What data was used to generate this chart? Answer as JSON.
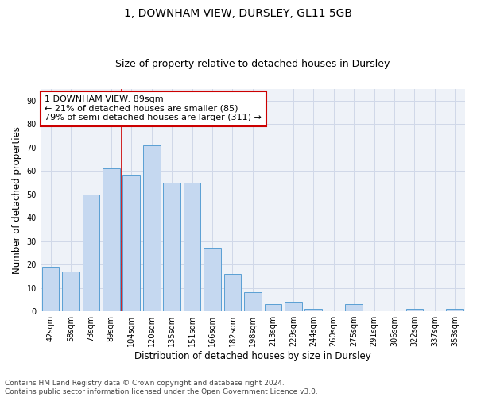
{
  "title": "1, DOWNHAM VIEW, DURSLEY, GL11 5GB",
  "subtitle": "Size of property relative to detached houses in Dursley",
  "xlabel": "Distribution of detached houses by size in Dursley",
  "ylabel": "Number of detached properties",
  "categories": [
    "42sqm",
    "58sqm",
    "73sqm",
    "89sqm",
    "104sqm",
    "120sqm",
    "135sqm",
    "151sqm",
    "166sqm",
    "182sqm",
    "198sqm",
    "213sqm",
    "229sqm",
    "244sqm",
    "260sqm",
    "275sqm",
    "291sqm",
    "306sqm",
    "322sqm",
    "337sqm",
    "353sqm"
  ],
  "values": [
    19,
    17,
    50,
    61,
    58,
    71,
    55,
    55,
    27,
    16,
    8,
    3,
    4,
    1,
    0,
    3,
    0,
    0,
    1,
    0,
    1
  ],
  "bar_color": "#c5d8f0",
  "bar_edge_color": "#5a9fd4",
  "grid_color": "#d0d8e8",
  "bg_color": "#eef2f8",
  "vline_x_index": 3,
  "annotation_text_line1": "1 DOWNHAM VIEW: 89sqm",
  "annotation_text_line2": "← 21% of detached houses are smaller (85)",
  "annotation_text_line3": "79% of semi-detached houses are larger (311) →",
  "annotation_box_facecolor": "#ffffff",
  "annotation_box_edgecolor": "#cc0000",
  "vline_color": "#cc0000",
  "footer_line1": "Contains HM Land Registry data © Crown copyright and database right 2024.",
  "footer_line2": "Contains public sector information licensed under the Open Government Licence v3.0.",
  "ylim": [
    0,
    95
  ],
  "yticks": [
    0,
    10,
    20,
    30,
    40,
    50,
    60,
    70,
    80,
    90
  ],
  "title_fontsize": 10,
  "subtitle_fontsize": 9,
  "axis_label_fontsize": 8.5,
  "tick_fontsize": 7,
  "annotation_fontsize": 8,
  "footer_fontsize": 6.5
}
